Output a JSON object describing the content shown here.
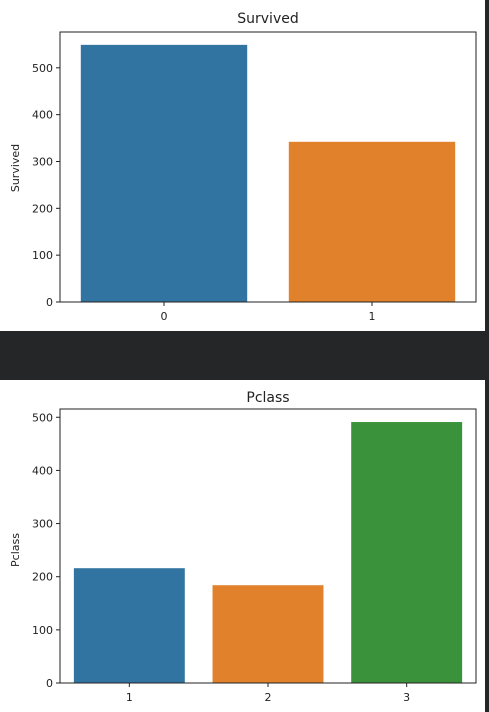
{
  "chart_data": [
    {
      "type": "bar",
      "title": "Survived",
      "xlabel": "",
      "ylabel": "Survived",
      "categories": [
        "0",
        "1"
      ],
      "values": [
        549,
        342
      ],
      "colors": [
        "#3274a1",
        "#e1812c"
      ],
      "ylim": [
        0,
        576.45
      ],
      "yticks": [
        0,
        100,
        200,
        300,
        400,
        500
      ],
      "grid": false,
      "legend": "none"
    },
    {
      "type": "bar",
      "title": "Pclass",
      "xlabel": "",
      "ylabel": "Pclass",
      "categories": [
        "1",
        "2",
        "3"
      ],
      "values": [
        216,
        184,
        491
      ],
      "colors": [
        "#3274a1",
        "#e1812c",
        "#3a923a"
      ],
      "ylim": [
        0,
        515.55
      ],
      "yticks": [
        0,
        100,
        200,
        300,
        400,
        500
      ],
      "grid": false,
      "legend": "none"
    }
  ]
}
